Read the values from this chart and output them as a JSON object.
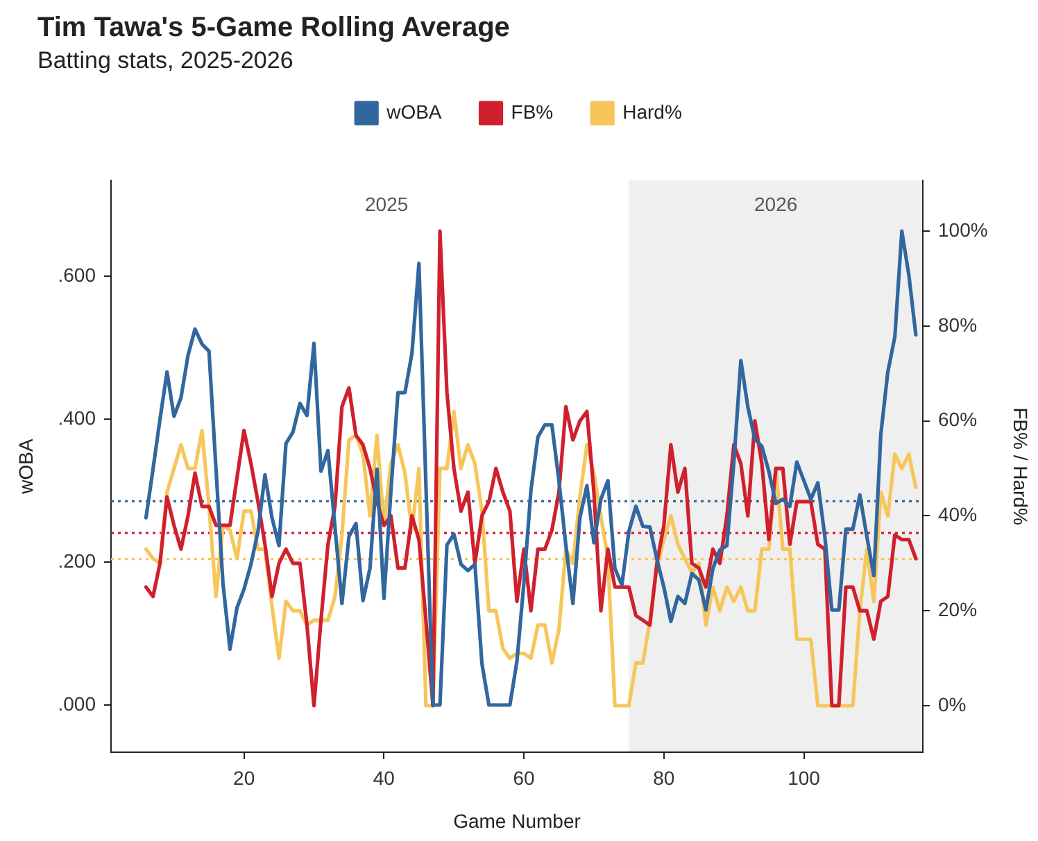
{
  "chart_data": {
    "type": "line",
    "title": "Tim Tawa's 5-Game Rolling Average",
    "subtitle": "Batting stats, 2025-2026",
    "xlabel": "Game Number",
    "ylabel": "wOBA",
    "y2label": "FB% / Hard%",
    "x": [
      6,
      7,
      8,
      9,
      10,
      11,
      12,
      13,
      14,
      15,
      16,
      17,
      18,
      19,
      20,
      21,
      22,
      23,
      24,
      25,
      26,
      27,
      28,
      29,
      30,
      31,
      32,
      33,
      34,
      35,
      36,
      37,
      38,
      39,
      40,
      41,
      42,
      43,
      44,
      45,
      46,
      47,
      48,
      49,
      50,
      51,
      52,
      53,
      54,
      55,
      56,
      57,
      58,
      59,
      60,
      61,
      62,
      63,
      64,
      65,
      66,
      67,
      68,
      69,
      70,
      71,
      72,
      73,
      74,
      75,
      76,
      77,
      78,
      79,
      80,
      81,
      82,
      83,
      84,
      85,
      86,
      87,
      88,
      89,
      90,
      91,
      92,
      93,
      94,
      95,
      96,
      97,
      98,
      99,
      100,
      101,
      102,
      103,
      104,
      105,
      106,
      107,
      108,
      109,
      110,
      111,
      112,
      113,
      114,
      115,
      116
    ],
    "series": [
      {
        "name": "wOBA",
        "color": "#31679e",
        "values": [
          0.262,
          0.33,
          0.4,
          0.466,
          0.404,
          0.43,
          0.489,
          0.526,
          0.505,
          0.495,
          0.33,
          0.17,
          0.078,
          0.136,
          0.162,
          0.197,
          0.243,
          0.322,
          0.262,
          0.223,
          0.366,
          0.382,
          0.422,
          0.405,
          0.506,
          0.327,
          0.356,
          0.249,
          0.142,
          0.236,
          0.254,
          0.146,
          0.191,
          0.33,
          0.149,
          0.3,
          0.437,
          0.437,
          0.492,
          0.618,
          0.307,
          0,
          0,
          0.224,
          0.239,
          0.197,
          0.188,
          0.197,
          0.058,
          0,
          0,
          0,
          0,
          0.061,
          0.171,
          0.3,
          0.375,
          0.392,
          0.392,
          0.314,
          0.223,
          0.142,
          0.262,
          0.307,
          0.227,
          0.288,
          0.314,
          0.191,
          0.168,
          0.243,
          0.278,
          0.25,
          0.249,
          0.204,
          0.165,
          0.117,
          0.152,
          0.142,
          0.184,
          0.175,
          0.133,
          0.191,
          0.217,
          0.223,
          0.34,
          0.482,
          0.417,
          0.372,
          0.362,
          0.327,
          0.282,
          0.288,
          0.278,
          0.34,
          0.314,
          0.288,
          0.311,
          0.236,
          0.133,
          0.133,
          0.246,
          0.246,
          0.294,
          0.236,
          0.181,
          0.379,
          0.466,
          0.515,
          0.663,
          0.602,
          0.518
        ]
      },
      {
        "name": "FB%",
        "color": "#d0202e",
        "axis": "y2",
        "values": [
          25,
          23,
          30,
          44,
          38,
          33,
          40,
          49,
          42,
          42,
          38,
          38,
          38,
          48,
          58,
          51,
          43,
          34,
          23,
          30,
          33,
          30,
          30,
          17,
          0,
          18,
          34,
          42,
          63,
          67,
          57,
          55,
          50,
          43,
          38,
          40,
          29,
          29,
          40,
          35,
          18,
          0,
          100,
          66,
          50,
          41,
          45,
          30,
          40,
          43,
          50,
          45,
          41,
          22,
          33,
          20,
          33,
          33,
          37,
          45,
          63,
          56,
          60,
          62,
          45,
          20,
          33,
          25,
          25,
          25,
          19,
          18,
          17,
          30,
          38,
          55,
          45,
          50,
          30,
          29,
          25,
          33,
          30,
          40,
          55,
          51,
          40,
          60,
          51,
          35,
          50,
          50,
          34,
          43,
          43,
          43,
          34,
          33,
          0,
          0,
          25,
          25,
          20,
          20,
          14,
          22,
          23,
          36,
          35,
          35,
          31
        ]
      },
      {
        "name": "Hard%",
        "color": "#f7c65b",
        "axis": "y2",
        "values": [
          33,
          31,
          30,
          45,
          50,
          55,
          50,
          50,
          58,
          42,
          23,
          38,
          37,
          31,
          41,
          41,
          33,
          33,
          21,
          10,
          22,
          20,
          20,
          17,
          18,
          18,
          18,
          23,
          36,
          56,
          57,
          53,
          40,
          57,
          38,
          51,
          55,
          49,
          37,
          50,
          0,
          0,
          50,
          50,
          62,
          50,
          55,
          51,
          41,
          20,
          20,
          12,
          10,
          11,
          11,
          10,
          17,
          17,
          9,
          16,
          33,
          30,
          44,
          55,
          49,
          40,
          31,
          0,
          0,
          0,
          9,
          9,
          18,
          29,
          35,
          40,
          34,
          31,
          28,
          30,
          17,
          25,
          20,
          25,
          22,
          25,
          20,
          20,
          33,
          33,
          50,
          33,
          33,
          14,
          14,
          14,
          0,
          0,
          0,
          0,
          0,
          0,
          20,
          33,
          22,
          45,
          40,
          53,
          50,
          53,
          46
        ]
      }
    ],
    "xlim": [
      1,
      117
    ],
    "xticks": [
      20,
      40,
      60,
      80,
      100
    ],
    "ylim": [
      -0.066,
      0.734
    ],
    "yticks": [
      {
        "value": 0,
        "label": ".000"
      },
      {
        "value": 0.2,
        "label": ".200"
      },
      {
        "value": 0.4,
        "label": ".400"
      },
      {
        "value": 0.6,
        "label": ".600"
      }
    ],
    "y2lim": [
      -9.8,
      110.7
    ],
    "y2ticks": [
      {
        "value": 0,
        "label": "0%"
      },
      {
        "value": 20,
        "label": "20%"
      },
      {
        "value": 40,
        "label": "40%"
      },
      {
        "value": 60,
        "label": "60%"
      },
      {
        "value": 80,
        "label": "80%"
      },
      {
        "value": 100,
        "label": "100%"
      }
    ],
    "ref_lines": [
      {
        "axis": "y",
        "value": 0.285,
        "color": "#31679e",
        "line_style": "dotted"
      },
      {
        "axis": "y2",
        "value": 36.4,
        "color": "#d0202e",
        "line_style": "dotted"
      },
      {
        "axis": "y2",
        "value": 30.9,
        "color": "#f7c65b",
        "line_style": "dotted"
      }
    ],
    "bands": [
      {
        "axis": "x",
        "from": 75,
        "to": 117,
        "label": "2026",
        "color": "#efefef"
      }
    ],
    "annotations": [
      "2025"
    ],
    "legend": "top",
    "grid": false
  }
}
